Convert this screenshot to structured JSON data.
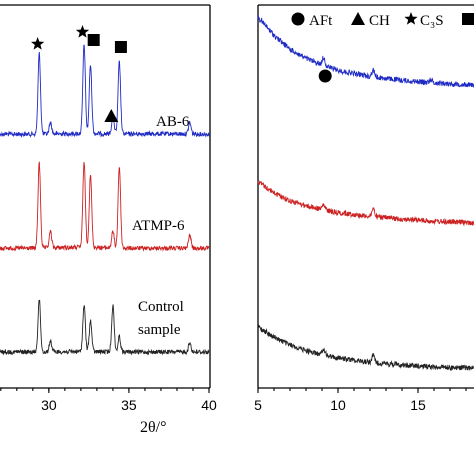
{
  "chart_data": [
    {
      "type": "line",
      "xlabel": "2θ/°",
      "xlim": [
        26.2,
        40
      ],
      "x_ticks": [
        "30",
        "35",
        "40"
      ],
      "y_ticks": false,
      "series": [
        {
          "name": "AB-6",
          "color": "#1f2bc4",
          "baseline_points": [
            [
              26.2,
              0.55
            ],
            [
              29.0,
              0.55
            ],
            [
              32.0,
              0.57
            ],
            [
              35.0,
              0.56
            ],
            [
              38.0,
              0.56
            ],
            [
              40.0,
              0.55
            ]
          ],
          "peaks": [
            [
              29.4,
              2.8
            ],
            [
              30.1,
              0.4
            ],
            [
              32.2,
              3.1
            ],
            [
              32.6,
              2.4
            ],
            [
              34.0,
              0.6
            ],
            [
              34.4,
              2.5
            ],
            [
              38.8,
              0.4
            ]
          ]
        },
        {
          "name": "ATMP-6",
          "color": "#cc2222",
          "baseline_points": [
            [
              26.2,
              0.3
            ],
            [
              29.0,
              0.3
            ],
            [
              32.0,
              0.33
            ],
            [
              35.0,
              0.3
            ],
            [
              38.0,
              0.3
            ],
            [
              40.0,
              0.3
            ]
          ],
          "peaks": [
            [
              29.4,
              2.6
            ],
            [
              30.1,
              0.5
            ],
            [
              32.2,
              2.6
            ],
            [
              32.6,
              2.2
            ],
            [
              34.0,
              0.5
            ],
            [
              34.4,
              2.5
            ],
            [
              38.8,
              0.4
            ]
          ]
        },
        {
          "name": "Control sample",
          "color": "#222222",
          "baseline_points": [
            [
              26.2,
              0.26
            ],
            [
              29.0,
              0.26
            ],
            [
              32.0,
              0.27
            ],
            [
              35.0,
              0.26
            ],
            [
              38.0,
              0.26
            ],
            [
              40.0,
              0.26
            ]
          ],
          "peaks": [
            [
              29.4,
              1.7
            ],
            [
              30.1,
              0.35
            ],
            [
              32.2,
              1.5
            ],
            [
              32.6,
              1.0
            ],
            [
              34.0,
              1.5
            ],
            [
              34.4,
              0.5
            ],
            [
              38.8,
              0.3
            ]
          ]
        }
      ],
      "annotations": [
        {
          "symbol": "star",
          "x": 29.3
        },
        {
          "symbol": "star",
          "x": 32.1
        },
        {
          "symbol": "square",
          "x": 32.8
        },
        {
          "symbol": "square",
          "x": 34.5
        },
        {
          "symbol": "triangle",
          "x": 33.9
        }
      ]
    },
    {
      "type": "line",
      "xlabel": "",
      "xlim": [
        5,
        18.5
      ],
      "x_ticks": [
        "5",
        "10",
        "15"
      ],
      "y_ticks": false,
      "series": [
        {
          "color": "#1f2bc4",
          "baseline_points": [
            [
              5,
              4.9
            ],
            [
              6,
              4.1
            ],
            [
              7,
              3.5
            ],
            [
              8,
              3.1
            ],
            [
              9,
              2.82
            ],
            [
              10,
              2.58
            ],
            [
              12,
              2.32
            ],
            [
              14,
              2.15
            ],
            [
              16,
              2.04
            ],
            [
              18.5,
              1.95
            ]
          ],
          "peaks": [
            [
              9.1,
              0.35
            ],
            [
              12.2,
              0.3
            ],
            [
              15.8,
              0.15
            ]
          ]
        },
        {
          "color": "#cc2222",
          "baseline_points": [
            [
              5,
              2.9
            ],
            [
              6,
              2.5
            ],
            [
              7,
              2.2
            ],
            [
              8,
              2.02
            ],
            [
              9,
              1.88
            ],
            [
              10,
              1.76
            ],
            [
              12,
              1.62
            ],
            [
              14,
              1.52
            ],
            [
              16,
              1.44
            ],
            [
              18.5,
              1.38
            ]
          ],
          "peaks": [
            [
              9.1,
              0.18
            ],
            [
              12.2,
              0.3
            ]
          ]
        },
        {
          "color": "#222222",
          "baseline_points": [
            [
              5,
              1.9
            ],
            [
              6,
              1.55
            ],
            [
              7,
              1.3
            ],
            [
              8,
              1.12
            ],
            [
              9,
              0.98
            ],
            [
              10,
              0.88
            ],
            [
              12,
              0.74
            ],
            [
              14,
              0.65
            ],
            [
              16,
              0.59
            ],
            [
              18.5,
              0.55
            ]
          ],
          "peaks": [
            [
              9.1,
              0.22
            ],
            [
              12.2,
              0.22
            ]
          ]
        }
      ],
      "annotations": [
        {
          "symbol": "circle",
          "x": 9.2
        }
      ],
      "legend": {
        "placement": "top",
        "entries": [
          {
            "symbol": "circle",
            "label": "AFt"
          },
          {
            "symbol": "triangle",
            "label": "CH"
          },
          {
            "symbol": "star",
            "label": "C₃S"
          },
          {
            "symbol": "square",
            "label": ""
          }
        ]
      }
    }
  ]
}
